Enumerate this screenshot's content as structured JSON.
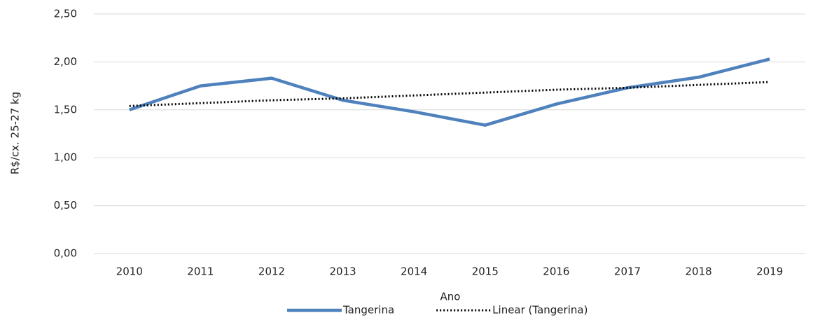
{
  "chart_data": {
    "type": "line",
    "x_label": "Ano",
    "y_label": "R$/cx. 25-27 kg",
    "categories": [
      "2010",
      "2011",
      "2012",
      "2013",
      "2014",
      "2015",
      "2016",
      "2017",
      "2018",
      "2019"
    ],
    "series": [
      {
        "name": "Tangerina",
        "color": "#4f81bd",
        "style": "solid",
        "values": [
          1.5,
          1.75,
          1.83,
          1.6,
          1.48,
          1.34,
          1.56,
          1.73,
          1.84,
          2.03
        ]
      },
      {
        "name": "Linear (Tangerina)",
        "color": "#000000",
        "style": "dotted",
        "values": [
          1.54,
          1.57,
          1.6,
          1.62,
          1.65,
          1.68,
          1.71,
          1.73,
          1.76,
          1.79
        ]
      }
    ],
    "ylim": [
      0,
      2.5
    ],
    "yticks": [
      {
        "value": 0,
        "label": "0,00"
      },
      {
        "value": 0.5,
        "label": "0,50"
      },
      {
        "value": 1,
        "label": "1,00"
      },
      {
        "value": 1.5,
        "label": "1,50"
      },
      {
        "value": 2,
        "label": "2,00"
      },
      {
        "value": 2.5,
        "label": "2,50"
      }
    ],
    "grid": true,
    "legend": "bottom"
  }
}
